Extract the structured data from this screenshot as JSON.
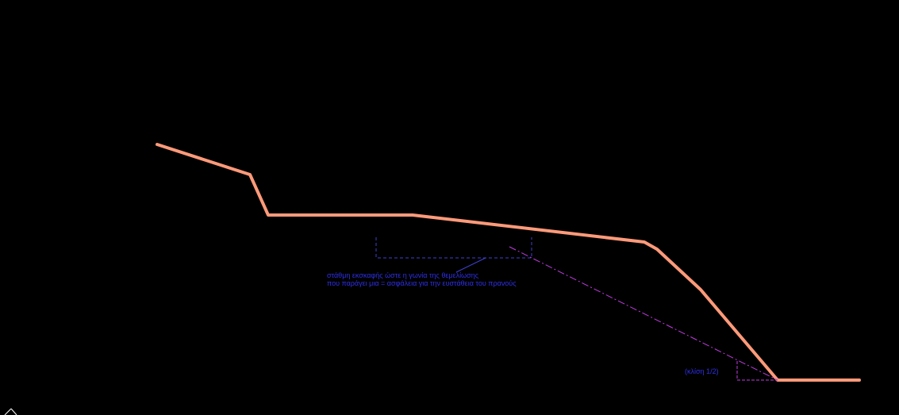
{
  "colors": {
    "background": "#000000",
    "terrain_profile": "#ff9a7a",
    "bench_outline": "#3f3fcf",
    "annotation_text": "#2f2fe8",
    "slope_marker": "#c03ce0",
    "ucs_icon": "#ffffff"
  },
  "annotations": {
    "note_line_1": "στάθμη εκσκαφής ώστε η γωνία της θεμελίωσης",
    "note_line_2": "που παράγει μια = ασφάλεια για την ευστάθεια του πρανούς",
    "slope_label": "(κλίση 1/2)"
  },
  "icons": {
    "ucs": "ucs-axis-icon"
  }
}
